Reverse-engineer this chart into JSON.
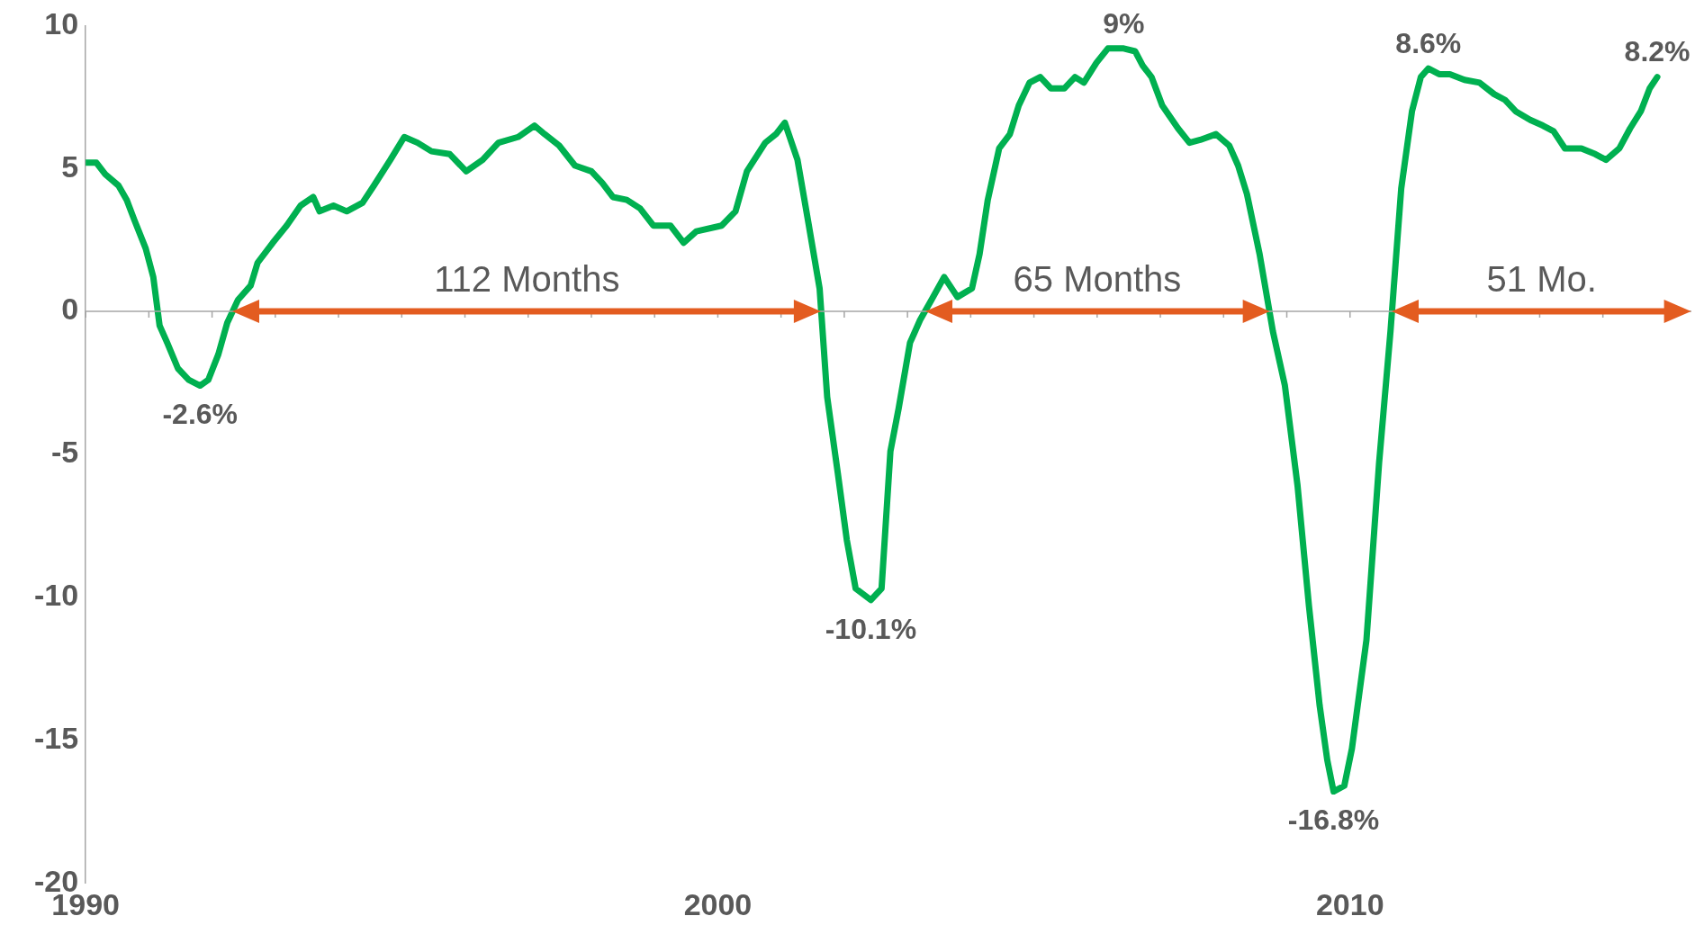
{
  "chart_data": {
    "type": "line",
    "x": [
      1990.0,
      1990.17,
      1990.31,
      1990.52,
      1990.65,
      1990.77,
      1990.95,
      1991.07,
      1991.17,
      1991.29,
      1991.46,
      1991.63,
      1991.81,
      1991.94,
      1992.1,
      1992.24,
      1992.41,
      1992.61,
      1992.72,
      1992.96,
      1993.18,
      1993.4,
      1993.6,
      1993.7,
      1993.92,
      1994.13,
      1994.38,
      1994.56,
      1994.82,
      1995.04,
      1995.25,
      1995.47,
      1995.76,
      1996.02,
      1996.28,
      1996.53,
      1996.84,
      1997.1,
      1997.26,
      1997.49,
      1997.74,
      1998.0,
      1998.17,
      1998.34,
      1998.56,
      1998.77,
      1998.98,
      1999.25,
      1999.46,
      1999.66,
      2000.06,
      2000.28,
      2000.46,
      2000.75,
      2000.92,
      2001.06,
      2001.26,
      2001.44,
      2001.61,
      2001.73,
      2001.9,
      2002.04,
      2002.18,
      2002.42,
      2002.59,
      2002.73,
      2002.86,
      2003.04,
      2003.2,
      2003.38,
      2003.58,
      2003.79,
      2004.02,
      2004.14,
      2004.27,
      2004.45,
      2004.62,
      2004.76,
      2004.93,
      2005.1,
      2005.27,
      2005.48,
      2005.65,
      2005.79,
      2005.99,
      2006.17,
      2006.42,
      2006.6,
      2006.72,
      2006.86,
      2007.03,
      2007.28,
      2007.46,
      2007.63,
      2007.88,
      2008.09,
      2008.23,
      2008.37,
      2008.57,
      2008.78,
      2008.97,
      2009.17,
      2009.35,
      2009.52,
      2009.64,
      2009.74,
      2009.91,
      2010.03,
      2010.26,
      2010.46,
      2010.64,
      2010.81,
      2010.98,
      2011.12,
      2011.24,
      2011.41,
      2011.58,
      2011.81,
      2012.05,
      2012.28,
      2012.45,
      2012.62,
      2012.85,
      2013.05,
      2013.22,
      2013.4,
      2013.66,
      2013.88,
      2014.05,
      2014.26,
      2014.43,
      2014.6,
      2014.74,
      2014.86
    ],
    "series": [
      {
        "color": "#00b050",
        "values": [
          5.2,
          5.2,
          4.8,
          4.4,
          3.9,
          3.2,
          2.2,
          1.2,
          -0.5,
          -1.1,
          -2.0,
          -2.4,
          -2.6,
          -2.4,
          -1.5,
          -0.4,
          0.4,
          0.9,
          1.7,
          2.4,
          3.0,
          3.7,
          4.0,
          3.5,
          3.7,
          3.5,
          3.8,
          4.4,
          5.3,
          6.1,
          5.9,
          5.6,
          5.5,
          4.9,
          5.3,
          5.9,
          6.1,
          6.5,
          6.2,
          5.8,
          5.1,
          4.9,
          4.5,
          4.0,
          3.9,
          3.6,
          3.0,
          3.0,
          2.4,
          2.8,
          3.0,
          3.5,
          4.9,
          5.9,
          6.2,
          6.6,
          5.3,
          3.0,
          0.8,
          -3.0,
          -5.7,
          -8.0,
          -9.7,
          -10.1,
          -9.7,
          -4.9,
          -3.4,
          -1.1,
          -0.3,
          0.4,
          1.2,
          0.5,
          0.8,
          2.0,
          3.9,
          5.7,
          6.2,
          7.2,
          8.0,
          8.2,
          7.8,
          7.8,
          8.2,
          8.0,
          8.7,
          9.2,
          9.2,
          9.1,
          8.6,
          8.2,
          7.2,
          6.4,
          5.9,
          6.0,
          6.2,
          5.8,
          5.1,
          4.1,
          2.0,
          -0.7,
          -2.6,
          -6.1,
          -10.3,
          -13.8,
          -15.7,
          -16.8,
          -16.6,
          -15.3,
          -11.5,
          -5.3,
          -0.7,
          4.3,
          7.0,
          8.2,
          8.5,
          8.3,
          8.3,
          8.1,
          8.0,
          7.6,
          7.4,
          7.0,
          6.7,
          6.5,
          6.3,
          5.7,
          5.7,
          5.5,
          5.3,
          5.7,
          6.4,
          7.0,
          7.8,
          8.2
        ]
      }
    ],
    "xlim": [
      1990,
      2015.4
    ],
    "xticks": [
      1990,
      {
        "value": 1991,
        "label": null
      },
      {
        "value": 1992,
        "label": null
      },
      {
        "value": 1993,
        "label": null
      },
      {
        "value": 1994,
        "label": null
      },
      {
        "value": 1995,
        "label": null
      },
      {
        "value": 1996,
        "label": null
      },
      {
        "value": 1997,
        "label": null
      },
      {
        "value": 1998,
        "label": null
      },
      {
        "value": 1999,
        "label": null
      },
      2000,
      {
        "value": 2001,
        "label": null
      },
      {
        "value": 2002,
        "label": null
      },
      {
        "value": 2003,
        "label": null
      },
      {
        "value": 2004,
        "label": null
      },
      {
        "value": 2005,
        "label": null
      },
      {
        "value": 2006,
        "label": null
      },
      {
        "value": 2007,
        "label": null
      },
      {
        "value": 2008,
        "label": null
      },
      {
        "value": 2009,
        "label": null
      },
      2010,
      {
        "value": 2011,
        "label": null
      },
      {
        "value": 2012,
        "label": null
      },
      {
        "value": 2013,
        "label": null
      },
      {
        "value": 2014,
        "label": null
      },
      {
        "value": 2015,
        "label": null
      }
    ],
    "ylim": [
      -20,
      10
    ],
    "yticks": [
      -20,
      -15,
      -10,
      -5,
      0,
      5,
      10
    ],
    "grid": false,
    "ref_lines": [
      {
        "axis": "y",
        "value": 0,
        "color": "#a6a6a6"
      }
    ],
    "legend": false,
    "marker": "none",
    "line_style": "solid",
    "annotations": [
      {
        "text": "-2.6%",
        "x": 1991.81,
        "y": -2.6
      },
      {
        "text": "-10.1%",
        "x": 2002.42,
        "y": -10.1
      },
      {
        "text": "9%",
        "x": 2006.42,
        "y": 9.2
      },
      {
        "text": "-16.8%",
        "x": 2009.74,
        "y": -16.8
      },
      {
        "text": "8.6%",
        "x": 2011.24,
        "y": 8.5
      },
      {
        "text": "8.2%",
        "x": 2014.86,
        "y": 8.2
      },
      "112 Months",
      "65 Months",
      "51 Mo."
    ]
  }
}
